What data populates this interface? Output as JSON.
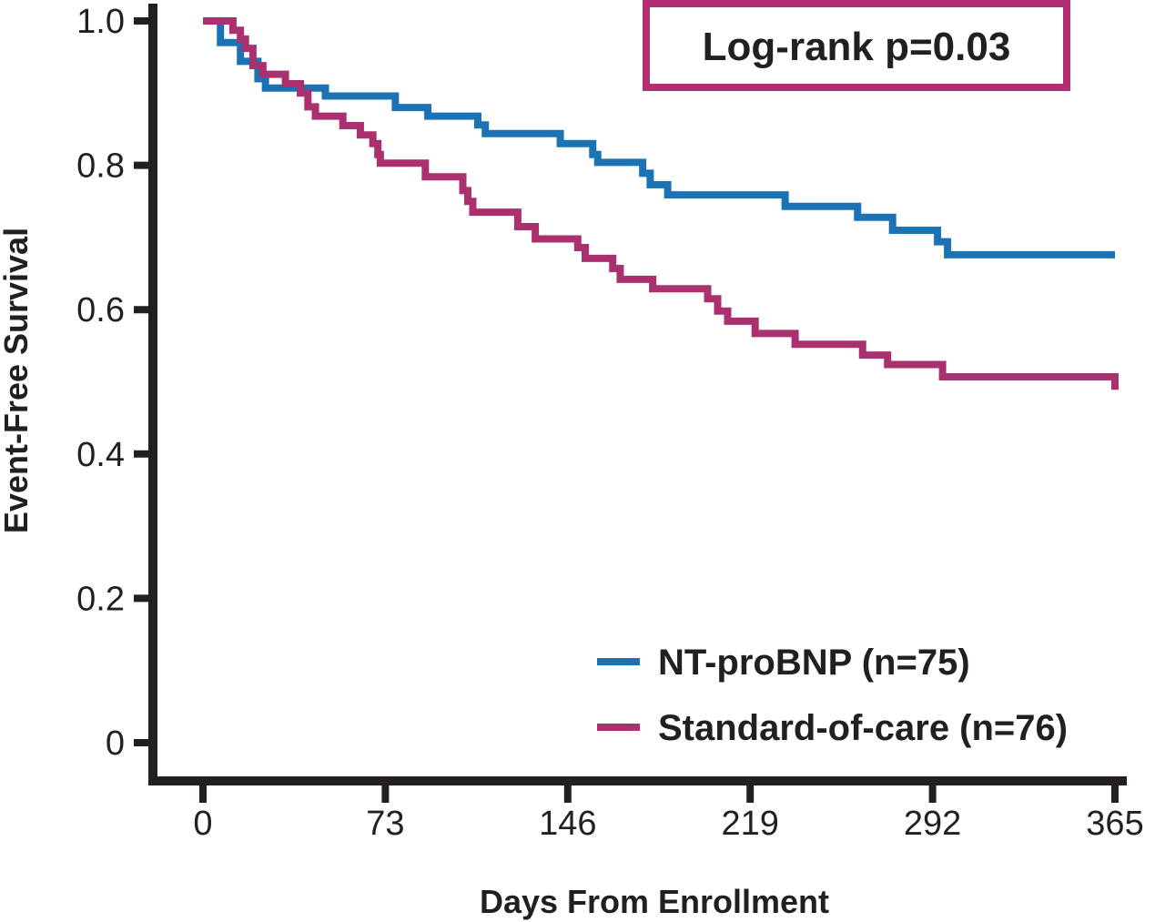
{
  "annotation_box": {
    "label": "Log-rank p=0.03",
    "border_color": "#b32d72",
    "fill": "#ffffff"
  },
  "colors": {
    "axis": "#231f20",
    "text": "#231f20",
    "nt_probnp_blue": "#1b73b4",
    "standard_of_care_magenta": "#aa3070",
    "background": "#ffffff"
  },
  "chart_data": {
    "type": "line",
    "subtype": "kaplan-meier-step",
    "title": "",
    "xlabel": "Days From Enrollment",
    "ylabel": "Event-Free Survival",
    "xlim": [
      0,
      365
    ],
    "ylim": [
      0,
      1.0
    ],
    "grid": false,
    "legend_position": "inside-bottom-right",
    "annotation": "Log-rank p=0.03",
    "x_ticks": [
      {
        "value": 0,
        "label": "0"
      },
      {
        "value": 73,
        "label": "73"
      },
      {
        "value": 146,
        "label": "146"
      },
      {
        "value": 219,
        "label": "219"
      },
      {
        "value": 292,
        "label": "292"
      },
      {
        "value": 365,
        "label": "365"
      }
    ],
    "y_ticks": [
      {
        "value": 1.0,
        "label": "1.0"
      },
      {
        "value": 0.8,
        "label": "0.8"
      },
      {
        "value": 0.6,
        "label": "0.6"
      },
      {
        "value": 0.4,
        "label": "0.4"
      },
      {
        "value": 0.2,
        "label": "0.2"
      },
      {
        "value": 0.0,
        "label": "0"
      }
    ],
    "series": [
      {
        "name": "NT-proBNP (n=75)",
        "n": 75,
        "color": "#1b73b4",
        "points": [
          [
            0,
            1.0
          ],
          [
            7,
            0.97
          ],
          [
            15,
            0.944
          ],
          [
            22,
            0.92
          ],
          [
            25,
            0.907
          ],
          [
            49,
            0.896
          ],
          [
            77,
            0.88
          ],
          [
            90,
            0.868
          ],
          [
            110,
            0.856
          ],
          [
            113,
            0.844
          ],
          [
            143,
            0.83
          ],
          [
            156,
            0.815
          ],
          [
            158,
            0.804
          ],
          [
            176,
            0.789
          ],
          [
            179,
            0.773
          ],
          [
            186,
            0.759
          ],
          [
            233,
            0.743
          ],
          [
            262,
            0.728
          ],
          [
            276,
            0.71
          ],
          [
            294,
            0.694
          ],
          [
            298,
            0.676
          ],
          [
            365,
            0.676
          ]
        ]
      },
      {
        "name": "Standard-of-care (n=76)",
        "n": 76,
        "color": "#aa3070",
        "points": [
          [
            0,
            1.0
          ],
          [
            12,
            0.987
          ],
          [
            15,
            0.975
          ],
          [
            17,
            0.962
          ],
          [
            20,
            0.938
          ],
          [
            24,
            0.926
          ],
          [
            33,
            0.913
          ],
          [
            39,
            0.9
          ],
          [
            42,
            0.881
          ],
          [
            45,
            0.868
          ],
          [
            56,
            0.855
          ],
          [
            63,
            0.842
          ],
          [
            68,
            0.83
          ],
          [
            70,
            0.815
          ],
          [
            71,
            0.803
          ],
          [
            89,
            0.784
          ],
          [
            104,
            0.765
          ],
          [
            106,
            0.75
          ],
          [
            108,
            0.735
          ],
          [
            126,
            0.715
          ],
          [
            133,
            0.698
          ],
          [
            150,
            0.686
          ],
          [
            153,
            0.671
          ],
          [
            164,
            0.657
          ],
          [
            167,
            0.642
          ],
          [
            180,
            0.629
          ],
          [
            202,
            0.615
          ],
          [
            206,
            0.598
          ],
          [
            210,
            0.584
          ],
          [
            221,
            0.567
          ],
          [
            237,
            0.552
          ],
          [
            264,
            0.537
          ],
          [
            274,
            0.524
          ],
          [
            296,
            0.507
          ],
          [
            365,
            0.489
          ]
        ]
      }
    ]
  }
}
